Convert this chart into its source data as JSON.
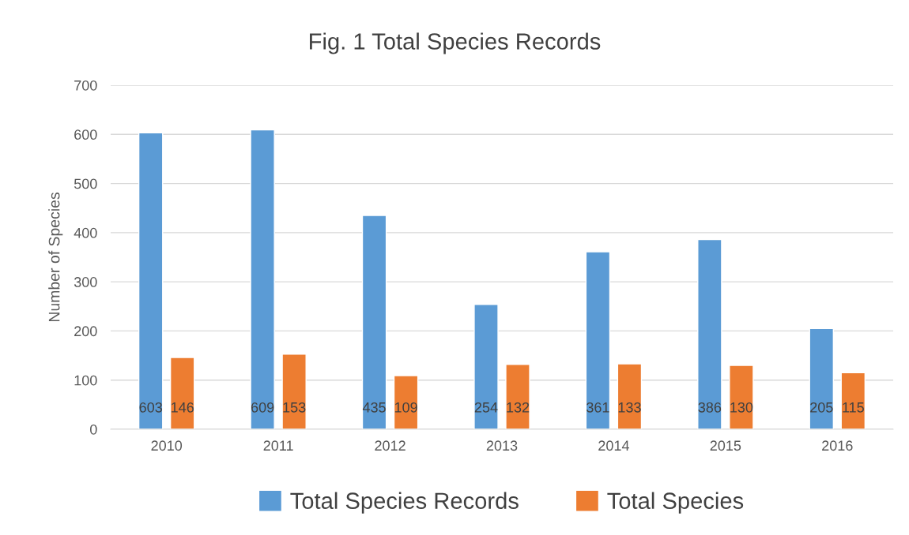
{
  "chart_data": {
    "type": "bar",
    "title": "Fig. 1 Total Species Records",
    "ylabel": "Number of Species",
    "categories": [
      "2010",
      "2011",
      "2012",
      "2013",
      "2014",
      "2015",
      "2016"
    ],
    "series": [
      {
        "name": "Total Species Records",
        "color": "#5b9bd5",
        "values": [
          603,
          609,
          435,
          254,
          361,
          386,
          205
        ]
      },
      {
        "name": "Total Species",
        "color": "#ed7d31",
        "values": [
          146,
          153,
          109,
          132,
          133,
          130,
          115
        ]
      }
    ],
    "ylim": [
      0,
      700
    ],
    "yticks": [
      0,
      100,
      200,
      300,
      400,
      500,
      600,
      700
    ],
    "grid": "y",
    "legend": "bottom",
    "data_labels": true
  }
}
